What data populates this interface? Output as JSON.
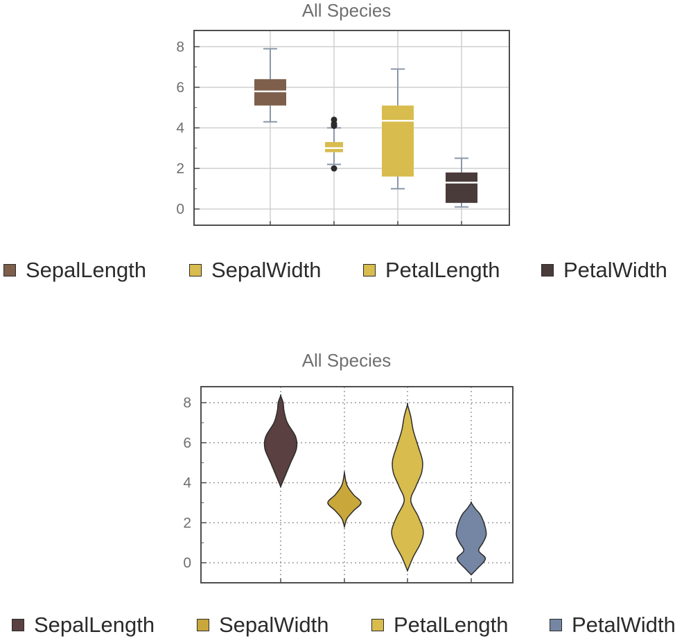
{
  "chart_data": [
    {
      "type": "box",
      "title": "All Species",
      "xlabel": "",
      "ylabel": "",
      "ylim": [
        -0.8,
        8.8
      ],
      "yticks": [
        0,
        2,
        4,
        6,
        8
      ],
      "grid": true,
      "legend_placement": "bottom",
      "series": [
        {
          "name": "SepalLength",
          "color": "#7d5f4b",
          "min": 4.3,
          "q1": 5.1,
          "median": 5.8,
          "q3": 6.4,
          "max": 7.9,
          "outliers": []
        },
        {
          "name": "SepalWidth",
          "color": "#d8bc4d",
          "min": 2.2,
          "q1": 2.8,
          "median": 3.0,
          "q3": 3.3,
          "max": 4.0,
          "outliers": [
            2.0,
            4.1,
            4.2,
            4.4
          ]
        },
        {
          "name": "PetalLength",
          "color": "#d8bc4d",
          "min": 1.0,
          "q1": 1.6,
          "median": 4.35,
          "q3": 5.1,
          "max": 6.9,
          "outliers": []
        },
        {
          "name": "PetalWidth",
          "color": "#4a3b3b",
          "min": 0.1,
          "q1": 0.3,
          "median": 1.3,
          "q3": 1.8,
          "max": 2.5,
          "outliers": []
        }
      ]
    },
    {
      "type": "violin",
      "title": "All Species",
      "xlabel": "",
      "ylabel": "",
      "ylim": [
        -1.0,
        8.8
      ],
      "yticks": [
        0,
        2,
        4,
        6,
        8
      ],
      "grid": true,
      "grid_style": "dotted",
      "legend_placement": "bottom",
      "series": [
        {
          "name": "SepalLength",
          "color": "#5a4040",
          "profile": [
            [
              3.8,
              0.0
            ],
            [
              4.3,
              0.25
            ],
            [
              5.0,
              0.6
            ],
            [
              5.7,
              0.95
            ],
            [
              6.3,
              0.9
            ],
            [
              7.0,
              0.4
            ],
            [
              7.6,
              0.2
            ],
            [
              8.0,
              0.15
            ],
            [
              8.35,
              0.0
            ]
          ]
        },
        {
          "name": "SepalWidth",
          "color": "#c9a73a",
          "profile": [
            [
              1.8,
              0.0
            ],
            [
              2.2,
              0.15
            ],
            [
              2.6,
              0.55
            ],
            [
              3.0,
              1.0
            ],
            [
              3.4,
              0.55
            ],
            [
              3.8,
              0.2
            ],
            [
              4.1,
              0.08
            ],
            [
              4.5,
              0.0
            ]
          ]
        },
        {
          "name": "PetalLength",
          "color": "#d8bc4d",
          "profile": [
            [
              -0.4,
              0.0
            ],
            [
              0.3,
              0.35
            ],
            [
              1.0,
              0.8
            ],
            [
              1.6,
              0.95
            ],
            [
              2.3,
              0.65
            ],
            [
              3.1,
              0.2
            ],
            [
              3.8,
              0.5
            ],
            [
              4.5,
              0.85
            ],
            [
              5.1,
              0.9
            ],
            [
              5.8,
              0.65
            ],
            [
              6.6,
              0.35
            ],
            [
              7.3,
              0.2
            ],
            [
              7.9,
              0.0
            ]
          ]
        },
        {
          "name": "PetalWidth",
          "color": "#7486a4",
          "profile": [
            [
              -0.6,
              0.0
            ],
            [
              -0.3,
              0.35
            ],
            [
              0.2,
              0.85
            ],
            [
              0.6,
              0.45
            ],
            [
              1.0,
              0.7
            ],
            [
              1.4,
              0.9
            ],
            [
              1.9,
              0.8
            ],
            [
              2.4,
              0.55
            ],
            [
              2.7,
              0.25
            ],
            [
              3.0,
              0.0
            ]
          ]
        }
      ]
    }
  ],
  "legend_box": [
    {
      "label": "SepalLength",
      "color": "#7d5f4b"
    },
    {
      "label": "SepalWidth",
      "color": "#d8bc4d"
    },
    {
      "label": "PetalLength",
      "color": "#d8bc4d"
    },
    {
      "label": "PetalWidth",
      "color": "#4a3b3b"
    }
  ],
  "legend_violin": [
    {
      "label": "SepalLength",
      "color": "#5a4040"
    },
    {
      "label": "SepalWidth",
      "color": "#c9a73a"
    },
    {
      "label": "PetalLength",
      "color": "#d8bc4d"
    },
    {
      "label": "PetalWidth",
      "color": "#7486a4"
    }
  ]
}
